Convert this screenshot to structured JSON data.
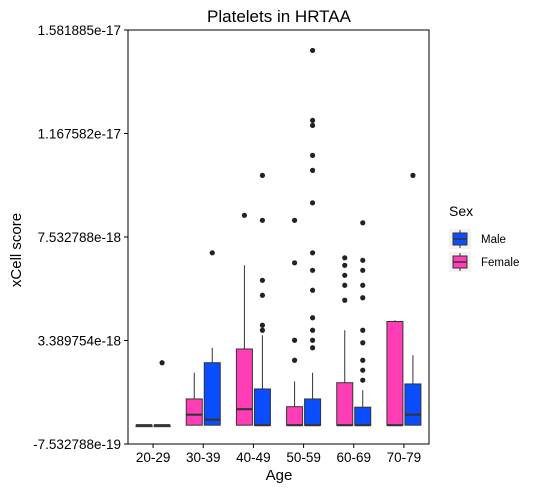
{
  "chart_data": {
    "type": "boxplot",
    "title": "Platelets in HRTAA",
    "xlabel": "Age",
    "ylabel": "xCell score",
    "categories": [
      "20-29",
      "30-39",
      "40-49",
      "50-59",
      "60-69",
      "70-79"
    ],
    "y_ticks": [
      -7.532788e-19,
      3.389754e-18,
      7.532788e-18,
      1.167582e-17,
      1.581885e-17
    ],
    "y_tick_labels": [
      "-7.532788e-19",
      "3.389754e-18",
      "7.532788e-18",
      "1.167582e-17",
      "1.581885e-17"
    ],
    "ylim": [
      -7.532788e-19,
      1.581885e-17
    ],
    "legend": {
      "title": "Sex",
      "position": "right"
    },
    "grid": false,
    "series": [
      {
        "name": "Female",
        "color": "#ff3eb5",
        "boxes": [
          {
            "category": "20-29",
            "whisker_low": 0,
            "q1": 0,
            "median": 0,
            "q3": 0,
            "whisker_high": 0,
            "outliers": []
          },
          {
            "category": "30-39",
            "whisker_low": 0,
            "q1": 0,
            "median": 4.2e-19,
            "q3": 1.05e-18,
            "whisker_high": 2.1e-18,
            "outliers": []
          },
          {
            "category": "40-49",
            "whisker_low": 0,
            "q1": 0,
            "median": 6.4e-19,
            "q3": 3.05e-18,
            "whisker_high": 6.4e-18,
            "outliers": [
              8.4e-18
            ]
          },
          {
            "category": "50-59",
            "whisker_low": 0,
            "q1": 0,
            "median": 0,
            "q3": 7.4e-19,
            "whisker_high": 1.75e-18,
            "outliers": [
              2.6e-18,
              3.4e-18,
              6.5e-18,
              8.2e-18
            ]
          },
          {
            "category": "60-69",
            "whisker_low": 0,
            "q1": 0,
            "median": 0,
            "q3": 1.7e-18,
            "whisker_high": 3.8e-18,
            "outliers": [
              5e-18,
              5.6e-18,
              6e-18,
              6.4e-18,
              6.7e-18
            ]
          },
          {
            "category": "70-79",
            "whisker_low": 0,
            "q1": 0,
            "median": 0,
            "q3": 4.15e-18,
            "whisker_high": 4.2e-18,
            "outliers": []
          }
        ]
      },
      {
        "name": "Male",
        "color": "#0a4dff",
        "boxes": [
          {
            "category": "20-29",
            "whisker_low": 0,
            "q1": 0,
            "median": 0,
            "q3": 0,
            "whisker_high": 0,
            "outliers": [
              2.5e-18
            ]
          },
          {
            "category": "30-39",
            "whisker_low": 0,
            "q1": 0,
            "median": 2.2e-19,
            "q3": 2.5e-18,
            "whisker_high": 3.1e-18,
            "outliers": [
              6.9e-18
            ]
          },
          {
            "category": "40-49",
            "whisker_low": 0,
            "q1": 0,
            "median": 0,
            "q3": 1.45e-18,
            "whisker_high": 3.6e-18,
            "outliers": [
              3.8e-18,
              4e-18,
              5.2e-18,
              5.8e-18,
              8.2e-18,
              1e-17
            ]
          },
          {
            "category": "50-59",
            "whisker_low": 0,
            "q1": 0,
            "median": 0,
            "q3": 1.05e-18,
            "whisker_high": 2.1e-18,
            "outliers": [
              3.1e-18,
              3.4e-18,
              3.8e-18,
              4.3e-18,
              5.4e-18,
              6.2e-18,
              6.9e-18,
              8.9e-18,
              1.02e-17,
              1.08e-17,
              1.2e-17,
              1.22e-17,
              1.5e-17
            ]
          },
          {
            "category": "60-69",
            "whisker_low": 0,
            "q1": 0,
            "median": 0,
            "q3": 7.2e-19,
            "whisker_high": 1.4e-18,
            "outliers": [
              1.8e-18,
              2.2e-18,
              2.6e-18,
              3.3e-18,
              3.8e-18,
              5.1e-18,
              5.6e-18,
              6.2e-18,
              6.6e-18,
              8.1e-18
            ]
          },
          {
            "category": "70-79",
            "whisker_low": 0,
            "q1": 0,
            "median": 4.2e-19,
            "q3": 1.65e-18,
            "whisker_high": 2.8e-18,
            "outliers": [
              1e-17
            ]
          }
        ]
      }
    ]
  }
}
